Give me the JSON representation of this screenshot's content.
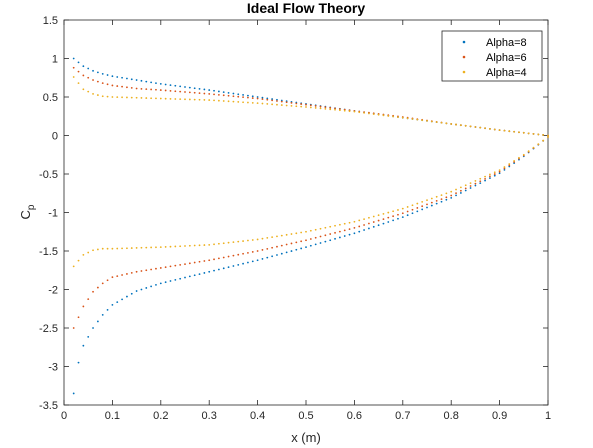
{
  "chart_data": {
    "type": "scatter",
    "title": "Ideal Flow Theory",
    "xlabel": "x (m)",
    "ylabel": "C",
    "ylabel_subscript": "p",
    "xlim": [
      0,
      1
    ],
    "ylim": [
      -3.5,
      1.5
    ],
    "xticks": [
      "0",
      "0.1",
      "0.2",
      "0.3",
      "0.4",
      "0.5",
      "0.6",
      "0.7",
      "0.8",
      "0.9",
      "1"
    ],
    "yticks": [
      "-3.5",
      "-3",
      "-2.5",
      "-2",
      "-1.5",
      "-1",
      "-0.5",
      "0",
      "0.5",
      "1",
      "1.5"
    ],
    "grid": false,
    "legend_position": "top-right",
    "series": [
      {
        "name": "Alpha=8",
        "color": "#0072BD",
        "upper": [
          [
            0.02,
            1.0
          ],
          [
            0.04,
            0.9
          ],
          [
            0.06,
            0.84
          ],
          [
            0.08,
            0.8
          ],
          [
            0.1,
            0.77
          ],
          [
            0.15,
            0.72
          ],
          [
            0.2,
            0.67
          ],
          [
            0.3,
            0.59
          ],
          [
            0.4,
            0.5
          ],
          [
            0.5,
            0.41
          ],
          [
            0.6,
            0.32
          ],
          [
            0.7,
            0.23
          ],
          [
            0.8,
            0.15
          ],
          [
            0.9,
            0.07
          ],
          [
            1.0,
            0.0
          ]
        ],
        "lower": [
          [
            0.02,
            -3.35
          ],
          [
            0.03,
            -2.95
          ],
          [
            0.04,
            -2.73
          ],
          [
            0.06,
            -2.5
          ],
          [
            0.08,
            -2.33
          ],
          [
            0.1,
            -2.2
          ],
          [
            0.15,
            -2.02
          ],
          [
            0.2,
            -1.92
          ],
          [
            0.3,
            -1.77
          ],
          [
            0.4,
            -1.62
          ],
          [
            0.5,
            -1.45
          ],
          [
            0.6,
            -1.27
          ],
          [
            0.7,
            -1.06
          ],
          [
            0.8,
            -0.81
          ],
          [
            0.9,
            -0.49
          ],
          [
            0.95,
            -0.27
          ],
          [
            1.0,
            -0.02
          ]
        ]
      },
      {
        "name": "Alpha=6",
        "color": "#D95319",
        "upper": [
          [
            0.02,
            0.88
          ],
          [
            0.04,
            0.78
          ],
          [
            0.06,
            0.72
          ],
          [
            0.08,
            0.68
          ],
          [
            0.1,
            0.65
          ],
          [
            0.15,
            0.61
          ],
          [
            0.2,
            0.59
          ],
          [
            0.3,
            0.54
          ],
          [
            0.4,
            0.48
          ],
          [
            0.5,
            0.4
          ],
          [
            0.6,
            0.32
          ],
          [
            0.7,
            0.24
          ],
          [
            0.8,
            0.15
          ],
          [
            0.9,
            0.07
          ],
          [
            1.0,
            0.0
          ]
        ],
        "lower": [
          [
            0.02,
            -2.5
          ],
          [
            0.04,
            -2.22
          ],
          [
            0.06,
            -2.03
          ],
          [
            0.08,
            -1.92
          ],
          [
            0.1,
            -1.84
          ],
          [
            0.15,
            -1.77
          ],
          [
            0.2,
            -1.72
          ],
          [
            0.3,
            -1.62
          ],
          [
            0.4,
            -1.5
          ],
          [
            0.5,
            -1.36
          ],
          [
            0.6,
            -1.2
          ],
          [
            0.7,
            -1.01
          ],
          [
            0.8,
            -0.78
          ],
          [
            0.9,
            -0.47
          ],
          [
            0.95,
            -0.26
          ],
          [
            1.0,
            -0.02
          ]
        ]
      },
      {
        "name": "Alpha=4",
        "color": "#EDB120",
        "upper": [
          [
            0.02,
            0.76
          ],
          [
            0.04,
            0.6
          ],
          [
            0.06,
            0.54
          ],
          [
            0.08,
            0.51
          ],
          [
            0.1,
            0.5
          ],
          [
            0.15,
            0.49
          ],
          [
            0.2,
            0.48
          ],
          [
            0.3,
            0.46
          ],
          [
            0.4,
            0.42
          ],
          [
            0.5,
            0.37
          ],
          [
            0.6,
            0.31
          ],
          [
            0.7,
            0.23
          ],
          [
            0.8,
            0.15
          ],
          [
            0.9,
            0.07
          ],
          [
            1.0,
            0.0
          ]
        ],
        "lower": [
          [
            0.02,
            -1.7
          ],
          [
            0.04,
            -1.55
          ],
          [
            0.06,
            -1.49
          ],
          [
            0.08,
            -1.47
          ],
          [
            0.1,
            -1.47
          ],
          [
            0.15,
            -1.46
          ],
          [
            0.2,
            -1.45
          ],
          [
            0.3,
            -1.42
          ],
          [
            0.4,
            -1.35
          ],
          [
            0.5,
            -1.25
          ],
          [
            0.6,
            -1.12
          ],
          [
            0.7,
            -0.95
          ],
          [
            0.8,
            -0.73
          ],
          [
            0.9,
            -0.45
          ],
          [
            0.95,
            -0.25
          ],
          [
            1.0,
            -0.02
          ]
        ]
      }
    ]
  }
}
